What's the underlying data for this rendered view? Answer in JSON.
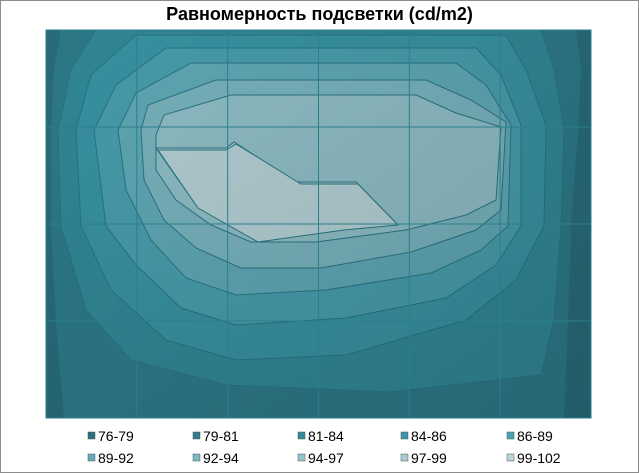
{
  "chart_data": {
    "type": "heatmap",
    "subtype": "contour",
    "title": "Равномерность подсветки (cd/m2)",
    "xlabel": "",
    "ylabel": "",
    "grid": true,
    "legend_position": "bottom",
    "levels": [
      {
        "label": "76-79",
        "range": [
          76,
          79
        ],
        "color": "#2a7080"
      },
      {
        "label": "79-81",
        "range": [
          79,
          81
        ],
        "color": "#2f7e8e"
      },
      {
        "label": "81-84",
        "range": [
          81,
          84
        ],
        "color": "#338c9c"
      },
      {
        "label": "84-86",
        "range": [
          84,
          86
        ],
        "color": "#3a97a8"
      },
      {
        "label": "86-89",
        "range": [
          86,
          89
        ],
        "color": "#4aa2b2"
      },
      {
        "label": "89-92",
        "range": [
          89,
          92
        ],
        "color": "#62adbb"
      },
      {
        "label": "92-94",
        "range": [
          92,
          94
        ],
        "color": "#7cb8c3"
      },
      {
        "label": "94-97",
        "range": [
          94,
          97
        ],
        "color": "#93c3cc"
      },
      {
        "label": "97-99",
        "range": [
          97,
          99
        ],
        "color": "#a8ccd3"
      },
      {
        "label": "99-102",
        "range": [
          99,
          102
        ],
        "color": "#b8d5da"
      }
    ]
  }
}
